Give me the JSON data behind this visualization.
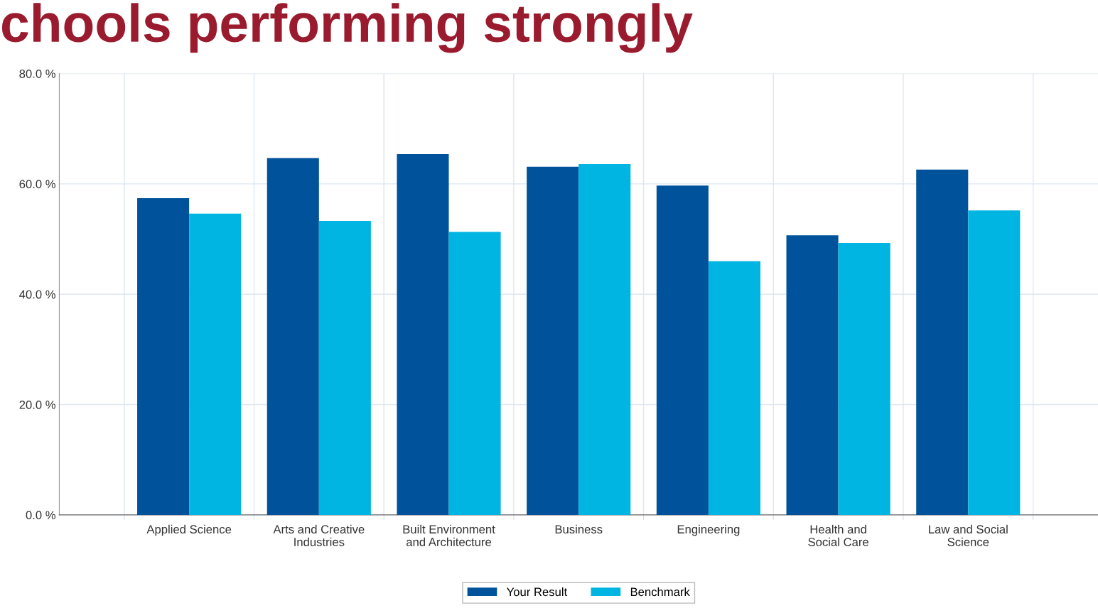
{
  "chart_data": {
    "type": "bar",
    "title": "chools performing strongly",
    "categories": [
      "Applied Science",
      "Arts and Creative\nIndustries",
      "Built Environment\nand Architecture",
      "Business",
      "Engineering",
      "Health and\nSocial Care",
      "Law and Social\nScience"
    ],
    "series": [
      {
        "name": "Your Result",
        "color": "#00529b",
        "values": [
          57.4,
          64.7,
          65.4,
          63.1,
          59.7,
          50.7,
          62.6
        ]
      },
      {
        "name": "Benchmark",
        "color": "#00b5e2",
        "values": [
          54.6,
          53.3,
          51.3,
          63.6,
          46.0,
          49.3,
          55.2
        ]
      }
    ],
    "ylim": [
      0,
      80
    ],
    "yticks": [
      {
        "value": 0,
        "label": "0.0 %"
      },
      {
        "value": 20,
        "label": "20.0 %"
      },
      {
        "value": 40,
        "label": "40.0 %"
      },
      {
        "value": 60,
        "label": "60.0 %"
      },
      {
        "value": 80,
        "label": "80.0 %"
      }
    ],
    "grid": true,
    "legend": "bottom"
  }
}
